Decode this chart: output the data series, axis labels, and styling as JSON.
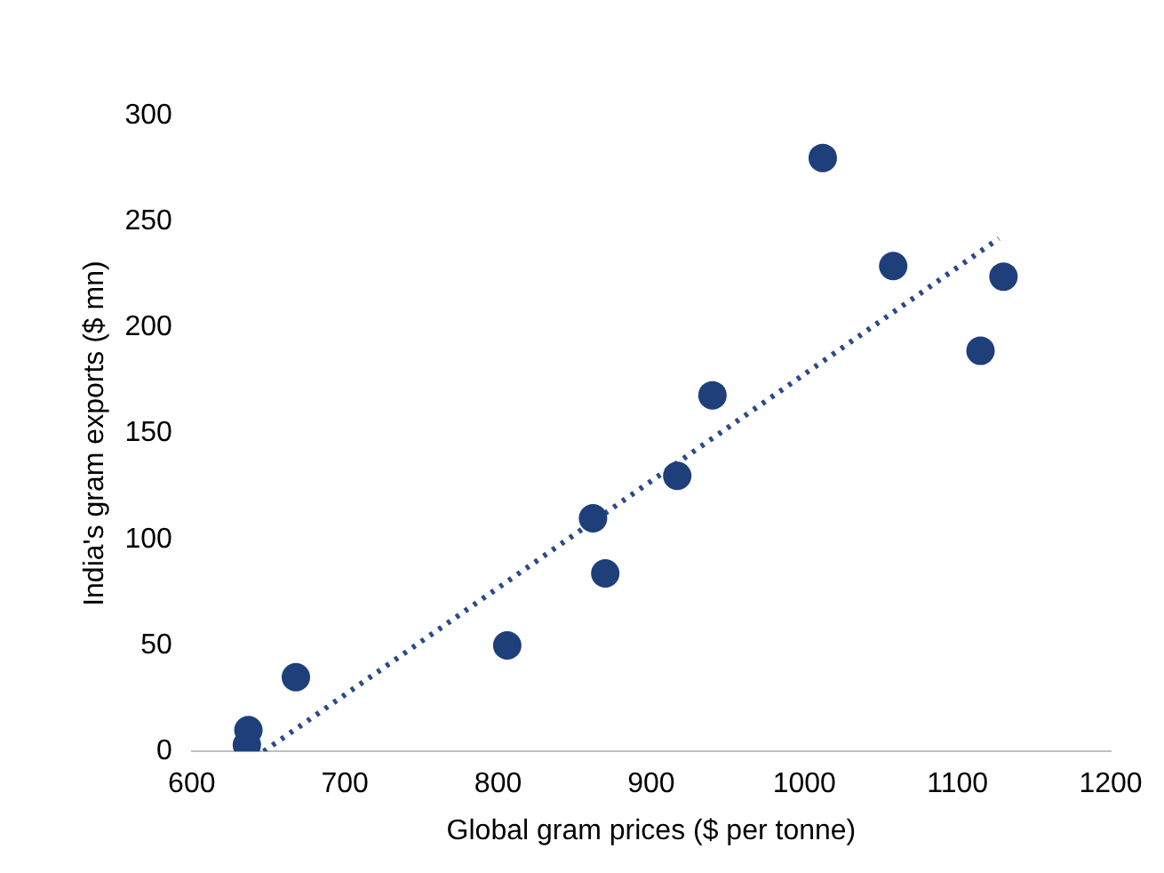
{
  "chart_data": {
    "type": "scatter",
    "xlabel": "Global gram prices ($ per tonne)",
    "ylabel": "India's gram exports ($ mn)",
    "xlim": [
      600,
      1200
    ],
    "xticks": [
      600,
      700,
      800,
      900,
      1000,
      1100,
      1200
    ],
    "ylim": [
      0,
      300
    ],
    "yticks": [
      0,
      50,
      100,
      150,
      200,
      250,
      300
    ],
    "grid": false,
    "legend": false,
    "series": [
      {
        "type": "scatter",
        "color": "#1f3f7a",
        "marker": "circle",
        "x": [
          636,
          637,
          668,
          806,
          862,
          870,
          917,
          940,
          1012,
          1058,
          1115,
          1130
        ],
        "values": [
          3,
          10,
          35,
          50,
          110,
          84,
          130,
          168,
          280,
          229,
          189,
          224
        ]
      },
      {
        "type": "line",
        "color": "#2a4a8a",
        "marker": "none",
        "line_style": "dotted",
        "x": [
          647,
          1127
        ],
        "values": [
          0,
          242
        ]
      }
    ]
  }
}
